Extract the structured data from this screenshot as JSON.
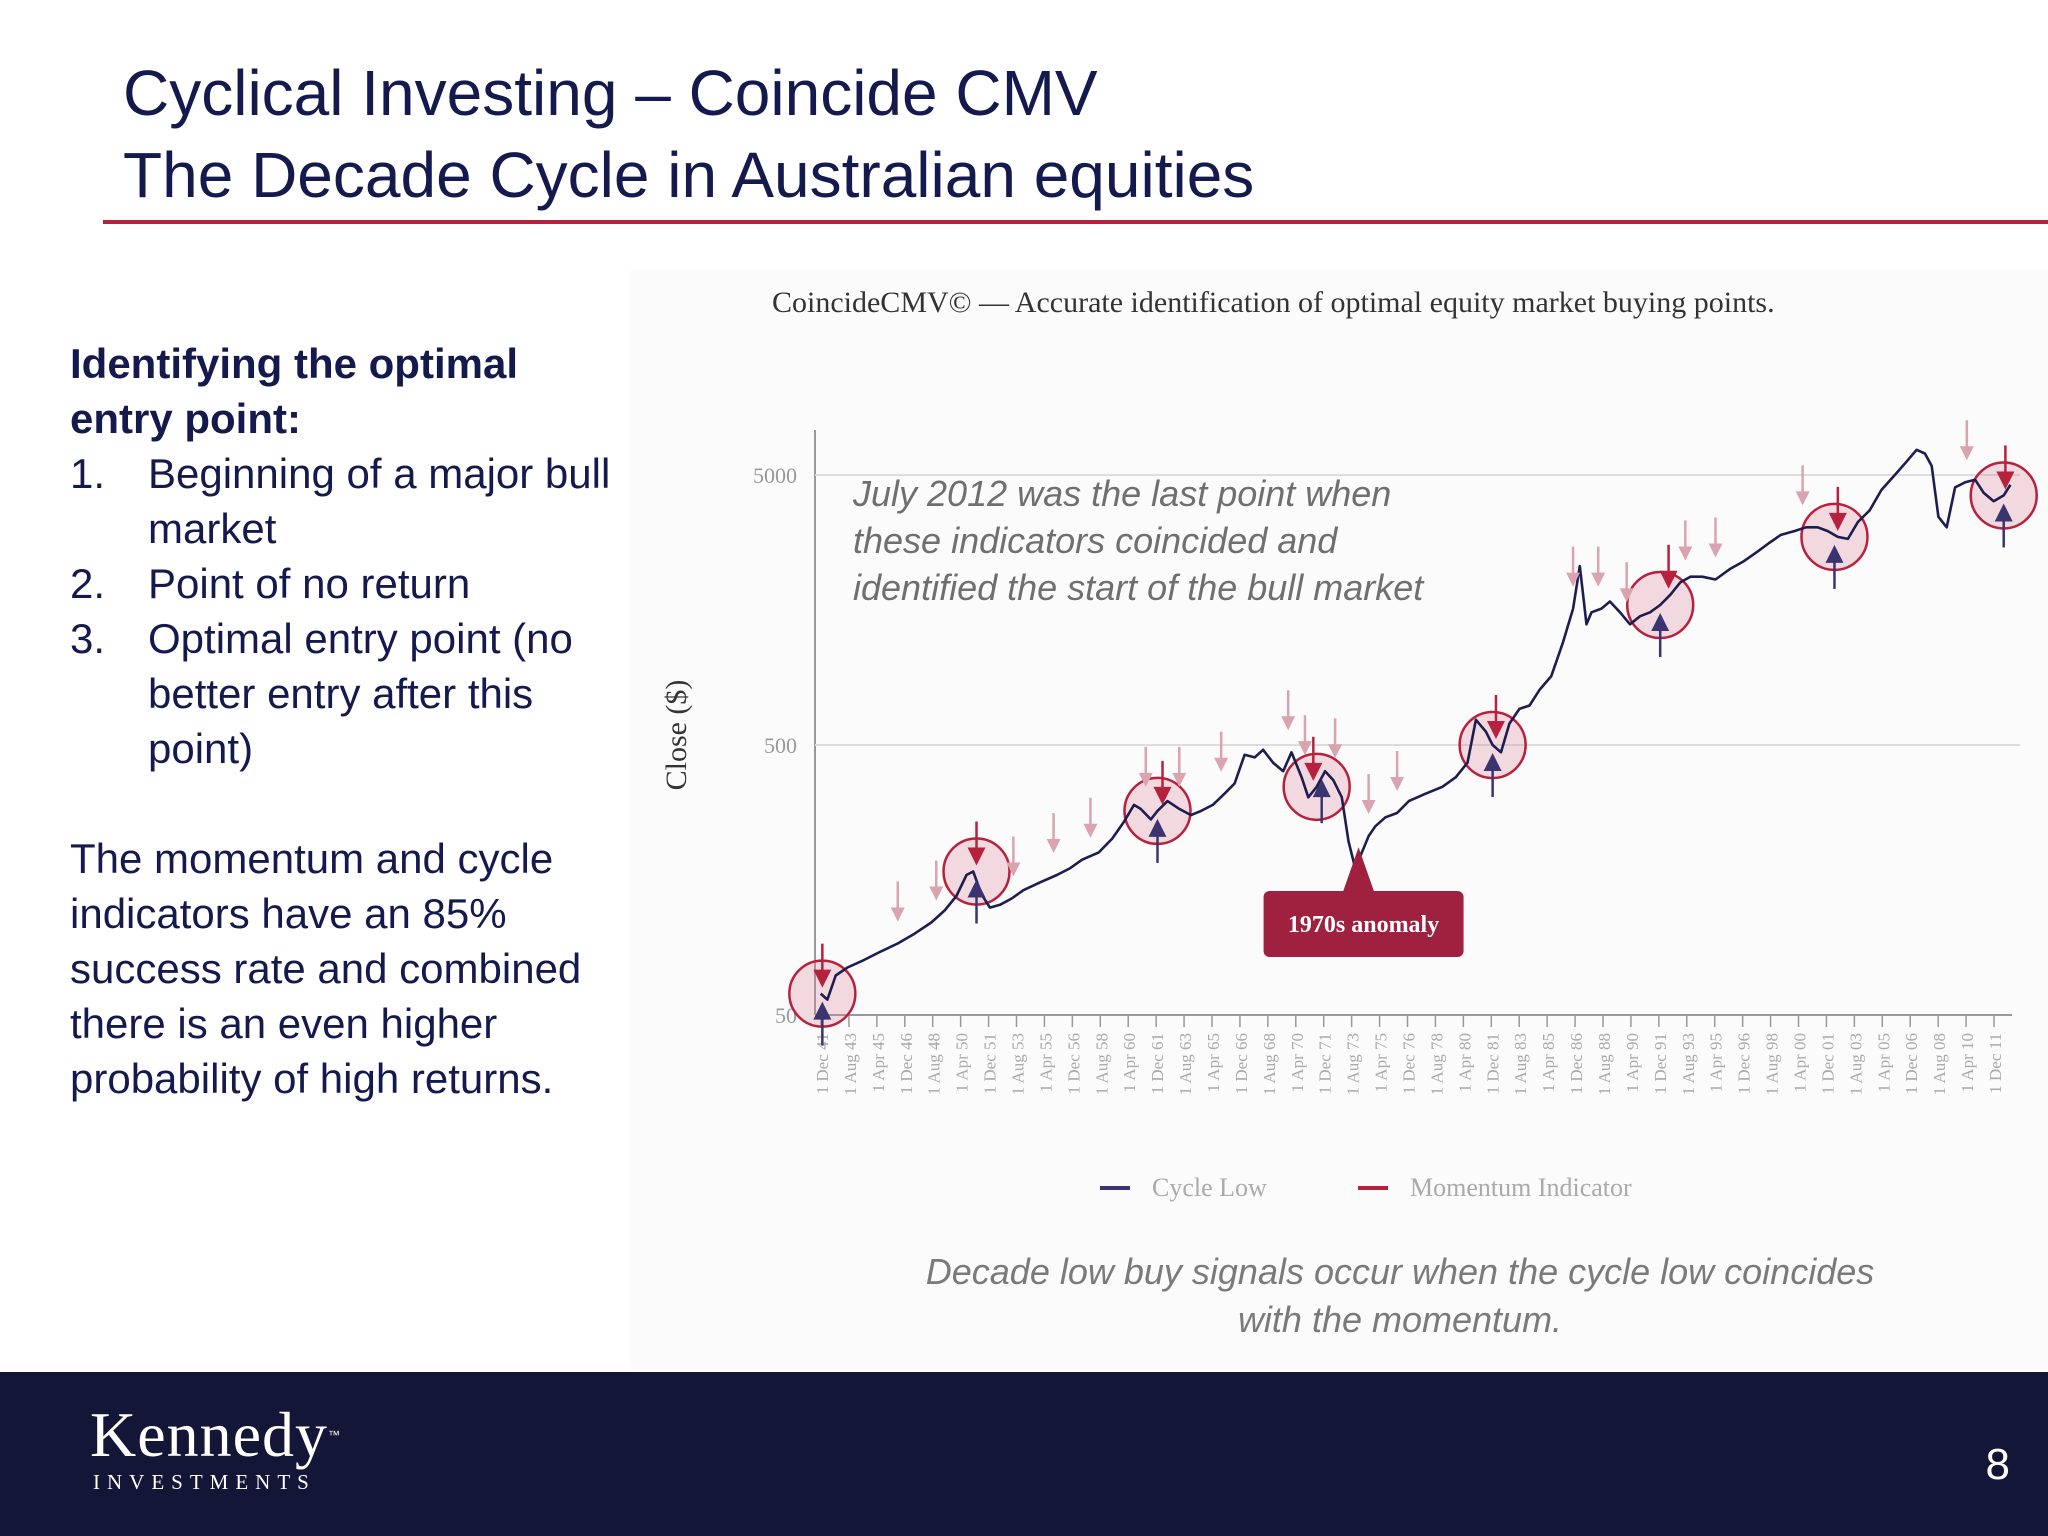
{
  "slide": {
    "title_line1": "Cyclical Investing – Coincide CMV",
    "title_line2": "The Decade Cycle in Australian equities",
    "page_number": "8",
    "colors": {
      "title": "#141a4d",
      "accent_rule": "#b8213d",
      "footer_bg": "#141637"
    }
  },
  "left": {
    "heading": "Identifying the optimal entry point:",
    "list": [
      {
        "num": "1.",
        "text": "Beginning of a major bull market"
      },
      {
        "num": "2.",
        "text": "Point of no return"
      },
      {
        "num": "3.",
        "text": "Optimal entry point (no better entry after this point)"
      }
    ],
    "paragraph": "The momentum and cycle indicators have an 85% success rate and combined there is an even higher probability of high returns."
  },
  "caption": "Decade low buy signals occur when the cycle low coincides with the momentum.",
  "logo": {
    "name": "Kennedy",
    "tm": "™",
    "subtitle": "INVESTMENTS"
  },
  "chart_data": {
    "type": "line",
    "title": "CoincideCMV© — Accurate identification of optimal equity market buying points.",
    "ylabel": "Close ($)",
    "y_scale": "log",
    "ylim": [
      50,
      8000
    ],
    "yticks": [
      50,
      500,
      5000
    ],
    "ytick_labels": [
      "50",
      "500",
      "5000"
    ],
    "x_tick_labels": [
      "1 Dec 41",
      "1 Aug 43",
      "1 Apr 45",
      "1 Dec 46",
      "1 Aug 48",
      "1 Apr 50",
      "1 Dec 51",
      "1 Aug 53",
      "1 Apr 55",
      "1 Dec 56",
      "1 Aug 58",
      "1 Apr 60",
      "1 Dec 61",
      "1 Aug 63",
      "1 Apr 65",
      "1 Dec 66",
      "1 Aug 68",
      "1 Apr 70",
      "1 Dec 71",
      "1 Aug 73",
      "1 Apr 75",
      "1 Dec 76",
      "1 Aug 78",
      "1 Apr 80",
      "1 Dec 81",
      "1 Aug 83",
      "1 Apr 85",
      "1 Dec 86",
      "1 Aug 88",
      "1 Apr 90",
      "1 Dec 91",
      "1 Aug 93",
      "1 Apr 95",
      "1 Dec 96",
      "1 Aug 98",
      "1 Apr 00",
      "1 Dec 01",
      "1 Aug 03",
      "1 Apr 05",
      "1 Dec 06",
      "1 Aug 08",
      "1 Apr 10",
      "1 Dec 11"
    ],
    "grid": "horizontal",
    "series": [
      {
        "name": "Close",
        "color": "#1d1d4f",
        "x": [
          1941.9,
          1942.3,
          1942.8,
          1943.5,
          1944.5,
          1945.5,
          1946.5,
          1947.5,
          1948.5,
          1949.3,
          1950.0,
          1950.6,
          1951.0,
          1951.5,
          1952.0,
          1952.6,
          1953.3,
          1954.0,
          1955.0,
          1956.0,
          1956.8,
          1957.5,
          1958.5,
          1959.3,
          1960.0,
          1960.6,
          1961.0,
          1961.6,
          1962.0,
          1962.6,
          1963.3,
          1964.0,
          1964.6,
          1965.3,
          1966.0,
          1966.6,
          1967.2,
          1967.8,
          1968.3,
          1968.9,
          1969.5,
          1970.0,
          1970.6,
          1971.0,
          1971.5,
          1972.0,
          1972.5,
          1973.0,
          1973.4,
          1973.8,
          1974.2,
          1974.6,
          1975.0,
          1975.6,
          1976.3,
          1977.0,
          1978.0,
          1979.0,
          1979.8,
          1980.5,
          1981.0,
          1981.6,
          1982.0,
          1982.5,
          1983.0,
          1983.6,
          1984.2,
          1984.8,
          1985.5,
          1986.2,
          1986.8,
          1987.2,
          1987.6,
          1987.9,
          1988.5,
          1989.0,
          1989.6,
          1990.2,
          1990.8,
          1991.4,
          1992.0,
          1992.6,
          1993.2,
          1993.8,
          1994.5,
          1995.3,
          1996.2,
          1997.0,
          1997.8,
          1998.5,
          1999.2,
          2000.0,
          2000.7,
          2001.4,
          2002.0,
          2002.6,
          2003.2,
          2003.8,
          2004.5,
          2005.2,
          2006.0,
          2006.7,
          2007.3,
          2007.8,
          2008.2,
          2008.6,
          2009.1,
          2009.6,
          2010.2,
          2010.8,
          2011.3,
          2011.9,
          2012.5,
          2012.9
        ],
        "values": [
          60,
          57,
          70,
          75,
          80,
          86,
          92,
          100,
          110,
          122,
          138,
          165,
          170,
          140,
          125,
          128,
          135,
          145,
          155,
          165,
          175,
          188,
          200,
          225,
          260,
          300,
          290,
          265,
          285,
          310,
          290,
          275,
          285,
          300,
          330,
          360,
          460,
          450,
          480,
          430,
          400,
          470,
          380,
          320,
          350,
          400,
          370,
          320,
          220,
          175,
          200,
          230,
          250,
          270,
          280,
          310,
          330,
          350,
          380,
          430,
          620,
          560,
          500,
          470,
          600,
          680,
          700,
          800,
          900,
          1200,
          1600,
          2300,
          1400,
          1550,
          1600,
          1700,
          1550,
          1400,
          1500,
          1550,
          1650,
          1800,
          2000,
          2100,
          2100,
          2050,
          2250,
          2400,
          2600,
          2800,
          3000,
          3100,
          3200,
          3200,
          3100,
          2950,
          2900,
          3350,
          3700,
          4400,
          5000,
          5600,
          6200,
          6000,
          5400,
          3500,
          3200,
          4500,
          4700,
          4800,
          4300,
          4000,
          4200,
          4600
        ]
      }
    ],
    "legend": [
      {
        "label": "Cycle Low",
        "color": "#3a3570"
      },
      {
        "label": "Momentum Indicator",
        "color": "#b8213d"
      }
    ],
    "legend_placement": "bottom",
    "signal_circles": [
      1942.0,
      1951.2,
      1962.0,
      1971.5,
      1982.0,
      1992.0,
      2002.4,
      2012.5
    ],
    "cycle_low_markers": [
      1942.0,
      1951.2,
      1962.0,
      1971.8,
      1982.0,
      1992.0,
      2002.4,
      2012.5
    ],
    "momentum_markers": [
      1942.0,
      1951.2,
      1962.3,
      1971.3,
      1982.2,
      1992.5,
      2002.6,
      2012.6
    ],
    "faded_markers": [
      1946.5,
      1948.8,
      1953.4,
      1955.8,
      1958.0,
      1961.3,
      1963.3,
      1965.8,
      1969.8,
      1970.8,
      1972.6,
      1974.6,
      1976.3,
      1986.8,
      1988.3,
      1990.0,
      1993.5,
      1995.3,
      2000.5,
      2010.3
    ],
    "annotations": [
      {
        "label": "July 2012 was the last point when these indicators coincided and identified the start of the bull market",
        "lines": [
          "July 2012 was the last point when",
          "these indicators coincided and",
          "identified the start of the bull market"
        ]
      },
      {
        "label": "1970s anomaly",
        "x": 1974.0,
        "y": 220
      }
    ]
  }
}
